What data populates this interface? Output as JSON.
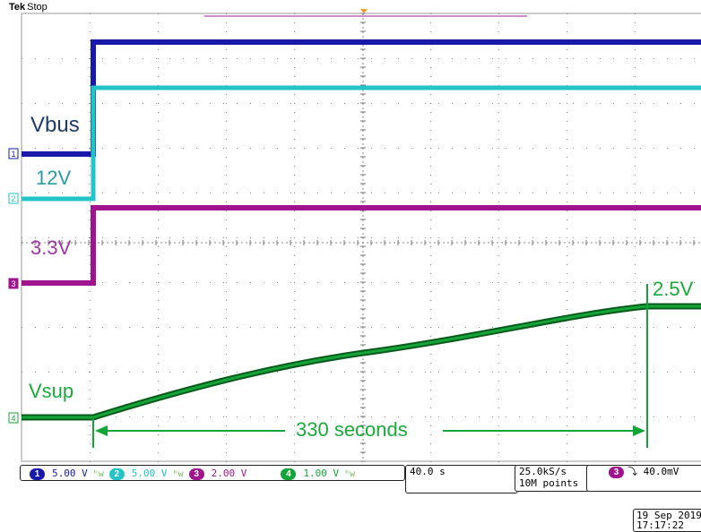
{
  "header": {
    "brand": "Tek",
    "state": "Stop"
  },
  "labels": {
    "vbus": "Vbus",
    "v12": "12V",
    "v33": "3.3V",
    "vsup": "Vsup",
    "v25": "2.5V",
    "duration": "330 seconds"
  },
  "channels": [
    {
      "num": "1",
      "scale": "5.00 V",
      "color": "#1a1aaa"
    },
    {
      "num": "2",
      "scale": "5.00 V",
      "color": "#22c4c8"
    },
    {
      "num": "3",
      "scale": "2.00 V",
      "color": "#a0158f"
    },
    {
      "num": "4",
      "scale": "1.00 V",
      "color": "#13a538"
    }
  ],
  "bw_symbol": "ᵇw",
  "timebase": "40.0 s",
  "acquisition": {
    "rate": "25.0kS/s",
    "points": "10M points"
  },
  "trigger": {
    "channel": "3",
    "slope_symbol": "⤵",
    "level": "40.0mV"
  },
  "datetime": {
    "date": "19 Sep  2019",
    "time": "17:17:22"
  },
  "colors": {
    "ch1": "#1a1aaa",
    "ch2": "#22c4c8",
    "ch3": "#a0158f",
    "ch4": "#13a538",
    "label_vbus": "#1f3a6b",
    "label_12v": "#2a9aa3",
    "label_33v": "#9d3aa1",
    "label_green": "#1aaa3a",
    "trigger_marker": "#f0a020"
  }
}
